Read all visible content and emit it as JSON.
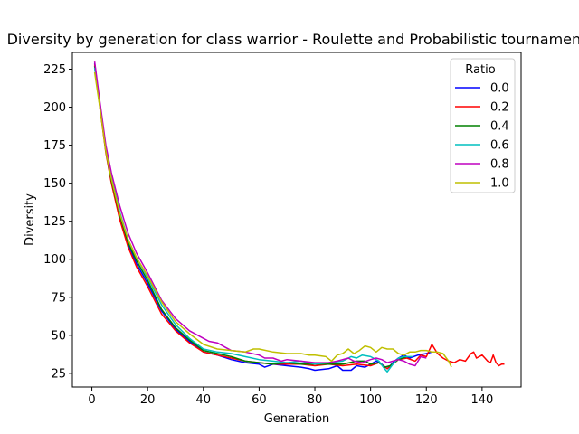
{
  "chart_data": {
    "type": "line",
    "title": "Diversity by generation for class warrior - Roulette and Probabilistic tournament",
    "xlabel": "Generation",
    "ylabel": "Diversity",
    "xlim": [
      -7,
      154
    ],
    "ylim": [
      16,
      236
    ],
    "xticks": [
      0,
      20,
      40,
      60,
      80,
      100,
      120,
      140
    ],
    "yticks": [
      25,
      50,
      75,
      100,
      125,
      150,
      175,
      200,
      225
    ],
    "grid": false,
    "legend": {
      "title": "Ratio",
      "placement": "top-right"
    },
    "series": [
      {
        "name": "0.0",
        "color": "#0000ff",
        "points": [
          [
            1,
            229
          ],
          [
            3,
            200
          ],
          [
            5,
            172
          ],
          [
            7,
            152
          ],
          [
            10,
            128
          ],
          [
            13,
            110
          ],
          [
            16,
            97
          ],
          [
            20,
            84
          ],
          [
            25,
            66
          ],
          [
            30,
            54
          ],
          [
            35,
            46
          ],
          [
            40,
            39
          ],
          [
            45,
            37
          ],
          [
            50,
            34
          ],
          [
            55,
            32
          ],
          [
            60,
            31
          ],
          [
            62,
            29
          ],
          [
            65,
            31
          ],
          [
            70,
            30
          ],
          [
            75,
            29
          ],
          [
            78,
            28
          ],
          [
            80,
            27
          ],
          [
            85,
            28
          ],
          [
            88,
            30
          ],
          [
            90,
            27
          ],
          [
            93,
            27
          ],
          [
            95,
            30
          ],
          [
            98,
            29
          ],
          [
            100,
            31
          ],
          [
            102,
            33
          ],
          [
            104,
            31
          ],
          [
            106,
            28
          ],
          [
            108,
            32
          ],
          [
            110,
            35
          ],
          [
            112,
            37
          ],
          [
            114,
            35
          ],
          [
            117,
            37
          ],
          [
            120,
            38
          ],
          [
            122,
            39
          ]
        ]
      },
      {
        "name": "0.2",
        "color": "#ff0000",
        "points": [
          [
            1,
            228
          ],
          [
            3,
            198
          ],
          [
            5,
            170
          ],
          [
            7,
            150
          ],
          [
            10,
            126
          ],
          [
            13,
            108
          ],
          [
            16,
            95
          ],
          [
            20,
            82
          ],
          [
            25,
            64
          ],
          [
            30,
            53
          ],
          [
            35,
            45
          ],
          [
            40,
            39
          ],
          [
            45,
            37
          ],
          [
            50,
            35
          ],
          [
            55,
            33
          ],
          [
            60,
            32
          ],
          [
            65,
            31
          ],
          [
            70,
            31
          ],
          [
            75,
            31
          ],
          [
            80,
            30
          ],
          [
            85,
            31
          ],
          [
            90,
            30
          ],
          [
            95,
            31
          ],
          [
            100,
            30
          ],
          [
            103,
            32
          ],
          [
            106,
            28
          ],
          [
            108,
            31
          ],
          [
            110,
            34
          ],
          [
            113,
            35
          ],
          [
            116,
            33
          ],
          [
            118,
            37
          ],
          [
            120,
            36
          ],
          [
            122,
            44
          ],
          [
            124,
            38
          ],
          [
            126,
            35
          ],
          [
            128,
            33
          ],
          [
            130,
            32
          ],
          [
            132,
            34
          ],
          [
            134,
            33
          ],
          [
            136,
            38
          ],
          [
            137,
            39
          ],
          [
            138,
            35
          ],
          [
            140,
            37
          ],
          [
            141,
            35
          ],
          [
            142,
            33
          ],
          [
            143,
            32
          ],
          [
            144,
            37
          ],
          [
            145,
            32
          ],
          [
            146,
            30
          ],
          [
            147,
            31
          ],
          [
            148,
            31
          ]
        ]
      },
      {
        "name": "0.4",
        "color": "#008000",
        "points": [
          [
            1,
            227
          ],
          [
            3,
            199
          ],
          [
            5,
            171
          ],
          [
            7,
            152
          ],
          [
            10,
            129
          ],
          [
            13,
            111
          ],
          [
            16,
            99
          ],
          [
            20,
            86
          ],
          [
            25,
            67
          ],
          [
            30,
            55
          ],
          [
            35,
            47
          ],
          [
            40,
            40
          ],
          [
            45,
            38
          ],
          [
            50,
            36
          ],
          [
            55,
            33
          ],
          [
            60,
            32
          ],
          [
            65,
            31
          ],
          [
            70,
            32
          ],
          [
            75,
            31
          ],
          [
            80,
            31
          ],
          [
            85,
            31
          ],
          [
            90,
            31
          ],
          [
            95,
            33
          ],
          [
            98,
            33
          ],
          [
            100,
            31
          ],
          [
            103,
            32
          ],
          [
            105,
            29
          ],
          [
            107,
            30
          ],
          [
            110,
            34
          ],
          [
            113,
            36
          ]
        ]
      },
      {
        "name": "0.6",
        "color": "#00bfbf",
        "points": [
          [
            1,
            226
          ],
          [
            3,
            201
          ],
          [
            5,
            173
          ],
          [
            7,
            154
          ],
          [
            10,
            131
          ],
          [
            13,
            113
          ],
          [
            16,
            101
          ],
          [
            20,
            88
          ],
          [
            25,
            70
          ],
          [
            30,
            57
          ],
          [
            35,
            48
          ],
          [
            40,
            41
          ],
          [
            45,
            39
          ],
          [
            50,
            38
          ],
          [
            55,
            36
          ],
          [
            60,
            34
          ],
          [
            65,
            33
          ],
          [
            70,
            32
          ],
          [
            75,
            33
          ],
          [
            80,
            31
          ],
          [
            85,
            32
          ],
          [
            90,
            33
          ],
          [
            93,
            36
          ],
          [
            95,
            35
          ],
          [
            97,
            37
          ],
          [
            100,
            36
          ],
          [
            103,
            33
          ],
          [
            105,
            28
          ],
          [
            106,
            26
          ],
          [
            108,
            31
          ],
          [
            110,
            35
          ],
          [
            112,
            36
          ],
          [
            115,
            36
          ]
        ]
      },
      {
        "name": "0.8",
        "color": "#bf00bf",
        "points": [
          [
            1,
            230
          ],
          [
            3,
            202
          ],
          [
            5,
            175
          ],
          [
            7,
            157
          ],
          [
            10,
            135
          ],
          [
            13,
            117
          ],
          [
            16,
            104
          ],
          [
            20,
            91
          ],
          [
            25,
            73
          ],
          [
            30,
            61
          ],
          [
            35,
            53
          ],
          [
            40,
            48
          ],
          [
            42,
            46
          ],
          [
            45,
            45
          ],
          [
            48,
            42
          ],
          [
            50,
            40
          ],
          [
            55,
            39
          ],
          [
            60,
            37
          ],
          [
            62,
            35
          ],
          [
            65,
            35
          ],
          [
            68,
            33
          ],
          [
            70,
            34
          ],
          [
            75,
            33
          ],
          [
            80,
            32
          ],
          [
            85,
            32
          ],
          [
            88,
            33
          ],
          [
            90,
            34
          ],
          [
            92,
            35
          ],
          [
            94,
            33
          ],
          [
            97,
            32
          ],
          [
            100,
            34
          ],
          [
            102,
            35
          ],
          [
            104,
            34
          ],
          [
            106,
            32
          ],
          [
            108,
            33
          ],
          [
            110,
            34
          ],
          [
            112,
            33
          ],
          [
            114,
            31
          ],
          [
            116,
            30
          ],
          [
            118,
            36
          ],
          [
            120,
            35
          ]
        ]
      },
      {
        "name": "1.0",
        "color": "#bfbf00",
        "points": [
          [
            1,
            223
          ],
          [
            3,
            198
          ],
          [
            5,
            171
          ],
          [
            7,
            153
          ],
          [
            10,
            130
          ],
          [
            13,
            113
          ],
          [
            16,
            101
          ],
          [
            20,
            89
          ],
          [
            25,
            72
          ],
          [
            30,
            59
          ],
          [
            35,
            51
          ],
          [
            40,
            44
          ],
          [
            45,
            41
          ],
          [
            50,
            40
          ],
          [
            55,
            39
          ],
          [
            58,
            41
          ],
          [
            60,
            41
          ],
          [
            65,
            39
          ],
          [
            70,
            38
          ],
          [
            75,
            38
          ],
          [
            78,
            37
          ],
          [
            80,
            37
          ],
          [
            84,
            36
          ],
          [
            86,
            33
          ],
          [
            88,
            37
          ],
          [
            90,
            38
          ],
          [
            92,
            41
          ],
          [
            94,
            38
          ],
          [
            96,
            40
          ],
          [
            98,
            43
          ],
          [
            100,
            42
          ],
          [
            102,
            39
          ],
          [
            104,
            42
          ],
          [
            106,
            41
          ],
          [
            108,
            41
          ],
          [
            110,
            38
          ],
          [
            112,
            37
          ],
          [
            114,
            39
          ],
          [
            116,
            39
          ],
          [
            118,
            40
          ],
          [
            120,
            40
          ],
          [
            122,
            39
          ],
          [
            124,
            39
          ],
          [
            126,
            38
          ],
          [
            128,
            33
          ],
          [
            129,
            29
          ]
        ]
      }
    ]
  }
}
